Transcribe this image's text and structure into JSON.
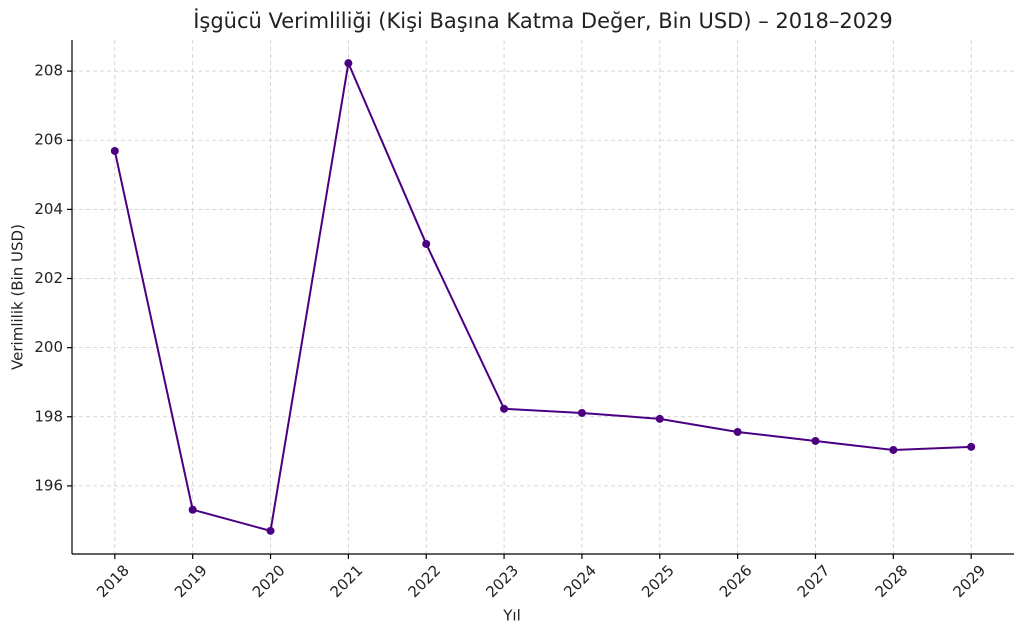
{
  "chart_data": {
    "type": "line",
    "title": "İşgücü Verimliliği (Kişi Başına Katma Değer, Bin USD) – 2018–2029",
    "x_label": "Yıl",
    "y_label": "Verimlilik (Bin USD)",
    "x": [
      2018,
      2019,
      2020,
      2021,
      2022,
      2023,
      2024,
      2025,
      2026,
      2027,
      2028,
      2029
    ],
    "series": [
      {
        "name": "Verimlilik",
        "color": "#4b0082",
        "values": [
          205.69,
          195.31,
          194.7,
          208.23,
          203.0,
          198.23,
          198.11,
          197.94,
          197.56,
          197.3,
          197.04,
          197.13
        ]
      }
    ],
    "xlim": [
      2017.45,
      2029.55
    ],
    "xticks": [
      2018,
      2019,
      2020,
      2021,
      2022,
      2023,
      2024,
      2025,
      2026,
      2027,
      2028,
      2029
    ],
    "ylim": [
      194.03,
      208.9
    ],
    "yticks": [
      196,
      198,
      200,
      202,
      204,
      206,
      208
    ],
    "grid": true
  }
}
